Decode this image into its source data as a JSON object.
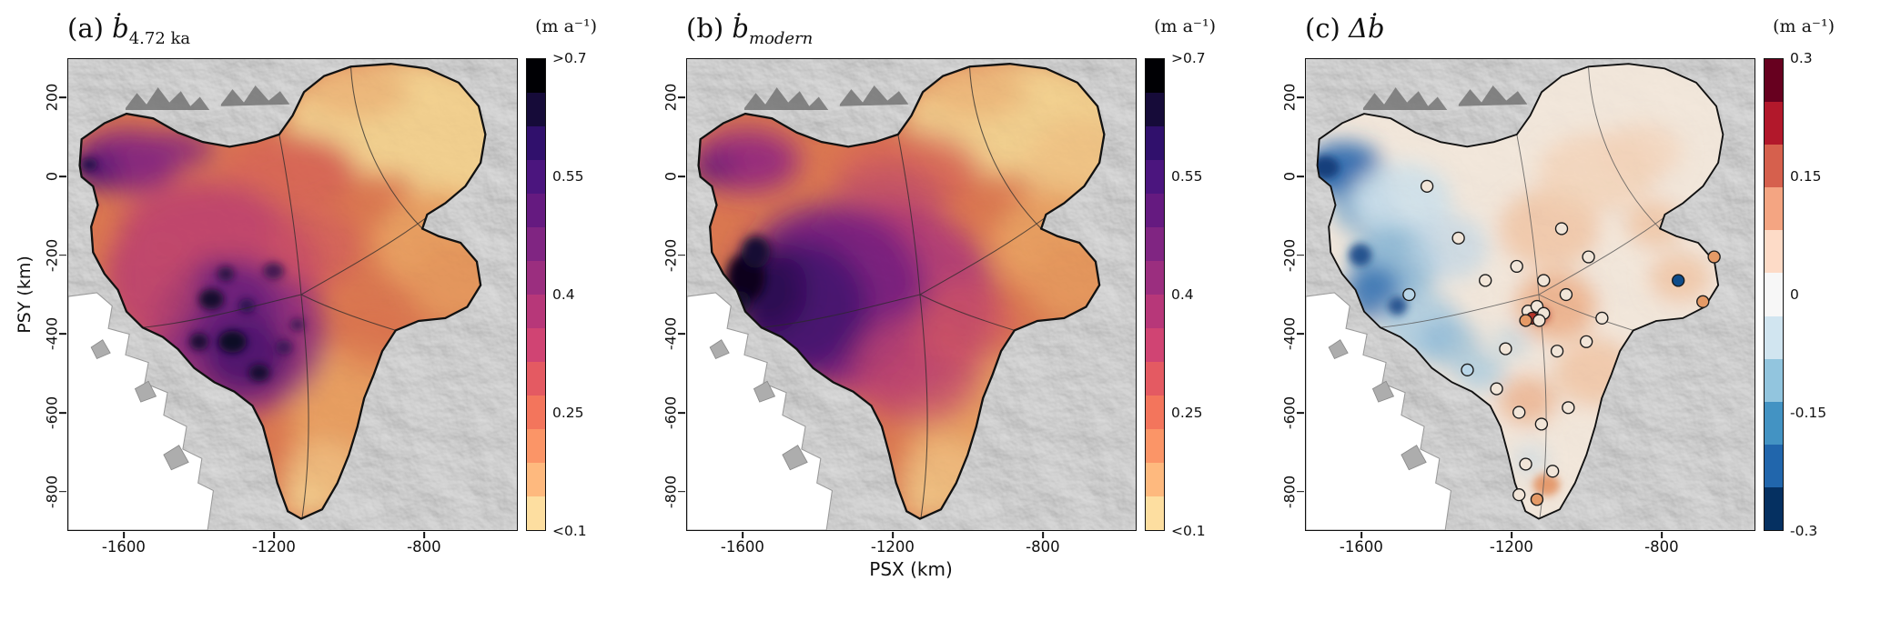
{
  "figure": {
    "xlabel": "PSX (km)",
    "ylabel": "PSY (km)",
    "units_label": "(m a⁻¹)"
  },
  "panels": [
    {
      "label_prefix": "(a)",
      "symbol": "ḃ",
      "subscript": "4.72 ka"
    },
    {
      "label_prefix": "(b)",
      "symbol": "ḃ",
      "subscript": "modern"
    },
    {
      "label_prefix": "(c)",
      "symbol": "Δḃ",
      "subscript": ""
    }
  ],
  "chart_data": [
    {
      "type": "heatmap",
      "panel": "a",
      "title": "(a) ḃ_{4.72 ka}",
      "units": "m a⁻¹",
      "xlabel": "PSX (km)",
      "ylabel": "PSY (km)",
      "xlim": [
        -1750,
        -550
      ],
      "ylim": [
        -900,
        300
      ],
      "x_ticks": [
        -1600,
        -1200,
        -800
      ],
      "y_ticks": [
        200,
        0,
        -200,
        -400,
        -600,
        -800
      ],
      "colorbar": {
        "range": [
          0.1,
          0.7
        ],
        "ticks": [
          ">0.7",
          "0.55",
          "0.4",
          "0.25",
          "<0.1"
        ],
        "colormap": "magma-like, dark = high accumulation",
        "colors_top_to_bottom": [
          "#000004",
          "#160b39",
          "#30106c",
          "#4b157e",
          "#651a80",
          "#802582",
          "#9b2e7f",
          "#b73779",
          "#d04473",
          "#e45a62",
          "#f3755c",
          "#fb9567",
          "#feb97e",
          "#fddea0"
        ]
      },
      "sample_points": [
        {
          "x": -1560,
          "y": -30,
          "value": 0.5
        },
        {
          "x": -1420,
          "y": -100,
          "value": 0.45
        },
        {
          "x": -1430,
          "y": -300,
          "value": 0.55
        },
        {
          "x": -1340,
          "y": -420,
          "value": 0.72
        },
        {
          "x": -1290,
          "y": -480,
          "value": 0.7
        },
        {
          "x": -1200,
          "y": -300,
          "value": 0.45
        },
        {
          "x": -1000,
          "y": -150,
          "value": 0.3
        },
        {
          "x": -850,
          "y": 50,
          "value": 0.12
        },
        {
          "x": -700,
          "y": -100,
          "value": 0.15
        },
        {
          "x": -700,
          "y": -350,
          "value": 0.25
        },
        {
          "x": -1050,
          "y": -550,
          "value": 0.25
        },
        {
          "x": -1100,
          "y": -750,
          "value": 0.18
        },
        {
          "x": -1130,
          "y": -850,
          "value": 0.2
        }
      ]
    },
    {
      "type": "heatmap",
      "panel": "b",
      "title": "(b) ḃ_modern",
      "units": "m a⁻¹",
      "xlabel": "PSX (km)",
      "ylabel": "PSY (km)",
      "xlim": [
        -1750,
        -550
      ],
      "ylim": [
        -900,
        300
      ],
      "x_ticks": [
        -1600,
        -1200,
        -800
      ],
      "y_ticks": [
        200,
        0,
        -200,
        -400,
        -600,
        -800
      ],
      "colorbar": {
        "range": [
          0.1,
          0.7
        ],
        "ticks": [
          ">0.7",
          "0.55",
          "0.4",
          "0.25",
          "<0.1"
        ],
        "colormap": "magma-like, dark = high accumulation",
        "colors_top_to_bottom": [
          "#000004",
          "#160b39",
          "#30106c",
          "#4b157e",
          "#651a80",
          "#802582",
          "#9b2e7f",
          "#b73779",
          "#d04473",
          "#e45a62",
          "#f3755c",
          "#fb9567",
          "#feb97e",
          "#fddea0"
        ]
      },
      "sample_points": [
        {
          "x": -1600,
          "y": -250,
          "value": 0.75
        },
        {
          "x": -1500,
          "y": -350,
          "value": 0.65
        },
        {
          "x": -1400,
          "y": -350,
          "value": 0.6
        },
        {
          "x": -1300,
          "y": -400,
          "value": 0.55
        },
        {
          "x": -1550,
          "y": 0,
          "value": 0.5
        },
        {
          "x": -1200,
          "y": -250,
          "value": 0.45
        },
        {
          "x": -1000,
          "y": -200,
          "value": 0.3
        },
        {
          "x": -850,
          "y": 50,
          "value": 0.12
        },
        {
          "x": -700,
          "y": -300,
          "value": 0.22
        },
        {
          "x": -1050,
          "y": -600,
          "value": 0.22
        },
        {
          "x": -1120,
          "y": -820,
          "value": 0.25
        }
      ]
    },
    {
      "type": "heatmap",
      "panel": "c",
      "title": "(c) Δḃ",
      "units": "m a⁻¹",
      "xlabel": "PSX (km)",
      "ylabel": "PSY (km)",
      "xlim": [
        -1750,
        -550
      ],
      "ylim": [
        -900,
        300
      ],
      "x_ticks": [
        -1600,
        -1200,
        -800
      ],
      "y_ticks": [
        200,
        0,
        -200,
        -400,
        -600,
        -800
      ],
      "colorbar": {
        "range": [
          -0.3,
          0.3
        ],
        "ticks": [
          "0.3",
          "0.15",
          "0",
          "-0.15",
          "-0.3"
        ],
        "colormap": "diverging red-blue, red = positive difference",
        "colors_top_to_bottom": [
          "#67001f",
          "#b2182b",
          "#d6604d",
          "#f4a582",
          "#fddbc7",
          "#f7f7f7",
          "#d1e5f0",
          "#92c5de",
          "#4393c3",
          "#2166ac",
          "#053061"
        ]
      },
      "sample_points": [
        {
          "x": -1600,
          "y": -150,
          "value": -0.25
        },
        {
          "x": -1500,
          "y": -300,
          "value": -0.15
        },
        {
          "x": -1450,
          "y": -400,
          "value": -0.1
        },
        {
          "x": -1350,
          "y": -300,
          "value": -0.05
        },
        {
          "x": -1250,
          "y": -350,
          "value": 0.1
        },
        {
          "x": -1150,
          "y": -350,
          "value": 0.15
        },
        {
          "x": -1000,
          "y": -100,
          "value": 0.05
        },
        {
          "x": -850,
          "y": -50,
          "value": 0.02
        },
        {
          "x": -700,
          "y": -300,
          "value": 0.05
        },
        {
          "x": -1150,
          "y": -800,
          "value": 0.1
        },
        {
          "x": -1300,
          "y": -550,
          "value": -0.05
        }
      ],
      "sites": [
        {
          "x": -1426,
          "y": -24,
          "fill": "#f1e5d8"
        },
        {
          "x": -1342,
          "y": -156,
          "fill": "#f1e5d8"
        },
        {
          "x": -1474,
          "y": -300,
          "fill": "#b9d6e8"
        },
        {
          "x": -1270,
          "y": -264,
          "fill": "#f1e5d8"
        },
        {
          "x": -1186,
          "y": -228,
          "fill": "#f1e5d8"
        },
        {
          "x": -1114,
          "y": -264,
          "fill": "#f1e5d8"
        },
        {
          "x": -1054,
          "y": -300,
          "fill": "#f1e5d8"
        },
        {
          "x": -1156,
          "y": -342,
          "fill": "#f1e5d8"
        },
        {
          "x": -1132,
          "y": -330,
          "fill": "#f1e5d8"
        },
        {
          "x": -1114,
          "y": -348,
          "fill": "#f1e5d8"
        },
        {
          "x": -1144,
          "y": -360,
          "fill": "#b5342a"
        },
        {
          "x": -1126,
          "y": -366,
          "fill": "#f1e5d8"
        },
        {
          "x": -1162,
          "y": -366,
          "fill": "#e59a66"
        },
        {
          "x": -1216,
          "y": -438,
          "fill": "#f1e5d8"
        },
        {
          "x": -1078,
          "y": -444,
          "fill": "#f1e5d8"
        },
        {
          "x": -1000,
          "y": -420,
          "fill": "#f1e5d8"
        },
        {
          "x": -958,
          "y": -360,
          "fill": "#f1e5d8"
        },
        {
          "x": -1318,
          "y": -492,
          "fill": "#b9d6e8"
        },
        {
          "x": -1240,
          "y": -540,
          "fill": "#f1e5d8"
        },
        {
          "x": -1180,
          "y": -600,
          "fill": "#f1e5d8"
        },
        {
          "x": -1120,
          "y": -630,
          "fill": "#f1e5d8"
        },
        {
          "x": -1048,
          "y": -588,
          "fill": "#f1e5d8"
        },
        {
          "x": -1162,
          "y": -732,
          "fill": "#f1e5d8"
        },
        {
          "x": -1090,
          "y": -750,
          "fill": "#f1e5d8"
        },
        {
          "x": -1132,
          "y": -822,
          "fill": "#e59a66"
        },
        {
          "x": -1180,
          "y": -810,
          "fill": "#f1e5d8"
        },
        {
          "x": -994,
          "y": -204,
          "fill": "#f1e5d8"
        },
        {
          "x": -1066,
          "y": -132,
          "fill": "#f1e5d8"
        },
        {
          "x": -754,
          "y": -264,
          "fill": "#0e4c8a"
        },
        {
          "x": -688,
          "y": -318,
          "fill": "#e59a66"
        },
        {
          "x": -658,
          "y": -204,
          "fill": "#e59a66"
        }
      ]
    }
  ]
}
